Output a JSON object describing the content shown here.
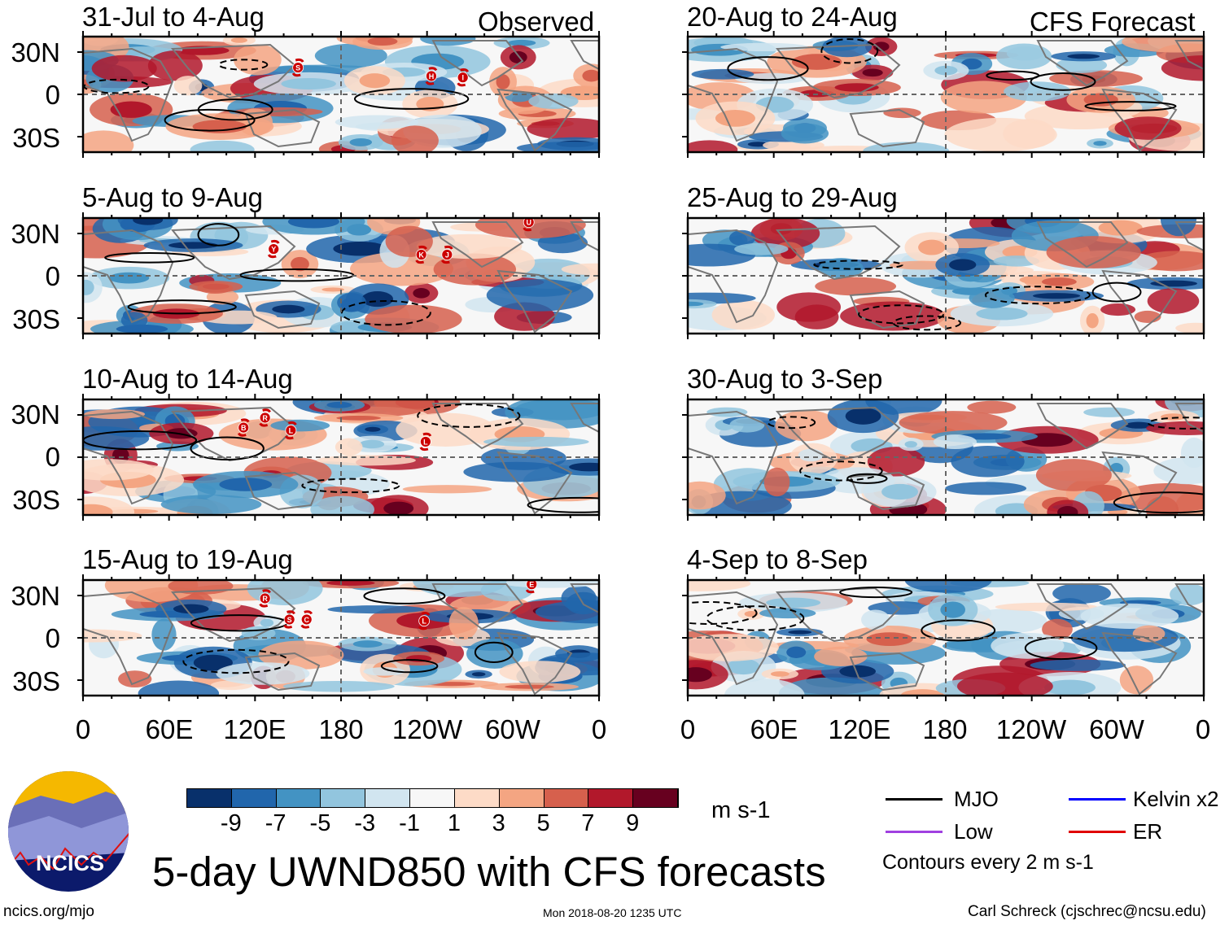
{
  "figure_title": "5-day UWND850 with CFS forecasts",
  "site": "ncics.org/mjo",
  "timestamp": "Mon 2018-08-20 1235 UTC",
  "author": "Carl Schreck (cjschrec@ncsu.edu)",
  "logo_text": "NCICS",
  "column_labels": {
    "observed": "Observed",
    "forecast": "CFS Forecast"
  },
  "y_ticks": [
    "30N",
    "0",
    "30S"
  ],
  "x_ticks": [
    "0",
    "60E",
    "120E",
    "180",
    "120W",
    "60W",
    "0"
  ],
  "colorbar": {
    "units": "m s-1",
    "labels": [
      "-9",
      "-7",
      "-5",
      "-3",
      "-1",
      "1",
      "3",
      "5",
      "7",
      "9"
    ],
    "colors": [
      "#08306b",
      "#2166ac",
      "#4393c3",
      "#92c5de",
      "#d1e5f0",
      "#f7f7f7",
      "#fddbc7",
      "#f4a582",
      "#d6604d",
      "#b2182b",
      "#67001f"
    ]
  },
  "legend": {
    "items": [
      {
        "label": "MJO",
        "color": "#000000"
      },
      {
        "label": "Kelvin x2",
        "color": "#0000ff"
      },
      {
        "label": "Low",
        "color": "#a040e0"
      },
      {
        "label": "ER",
        "color": "#e00000"
      }
    ],
    "note": "Contours every 2 m s-1"
  },
  "panels": [
    {
      "title": "31-Jul to 4-Aug",
      "type": "observed",
      "storms": [
        {
          "label": "S",
          "lon": 150,
          "lat": 19
        },
        {
          "label": "H",
          "lon": 243,
          "lat": 13
        },
        {
          "label": "I",
          "lon": 265,
          "lat": 12
        }
      ]
    },
    {
      "title": "5-Aug to 9-Aug",
      "type": "observed",
      "storms": [
        {
          "label": "Y",
          "lon": 133,
          "lat": 19
        },
        {
          "label": "K",
          "lon": 236,
          "lat": 15
        },
        {
          "label": "J",
          "lon": 254,
          "lat": 15
        },
        {
          "label": "U",
          "lon": 311,
          "lat": 38
        }
      ]
    },
    {
      "title": "10-Aug to 14-Aug",
      "type": "observed",
      "storms": [
        {
          "label": "B",
          "lon": 112,
          "lat": 21
        },
        {
          "label": "R",
          "lon": 127,
          "lat": 28
        },
        {
          "label": "L",
          "lon": 145,
          "lat": 19
        },
        {
          "label": "L",
          "lon": 239,
          "lat": 11
        }
      ]
    },
    {
      "title": "15-Aug to 19-Aug",
      "type": "observed",
      "storms": [
        {
          "label": "R",
          "lon": 127,
          "lat": 28
        },
        {
          "label": "S",
          "lon": 144,
          "lat": 13
        },
        {
          "label": "C",
          "lon": 156,
          "lat": 13
        },
        {
          "label": "L",
          "lon": 238,
          "lat": 12
        },
        {
          "label": "E",
          "lon": 313,
          "lat": 38
        }
      ]
    },
    {
      "title": "20-Aug to 24-Aug",
      "type": "forecast",
      "storms": []
    },
    {
      "title": "25-Aug to 29-Aug",
      "type": "forecast",
      "storms": []
    },
    {
      "title": "30-Aug to 3-Sep",
      "type": "forecast",
      "storms": []
    },
    {
      "title": "4-Sep to 8-Sep",
      "type": "forecast",
      "storms": []
    }
  ]
}
